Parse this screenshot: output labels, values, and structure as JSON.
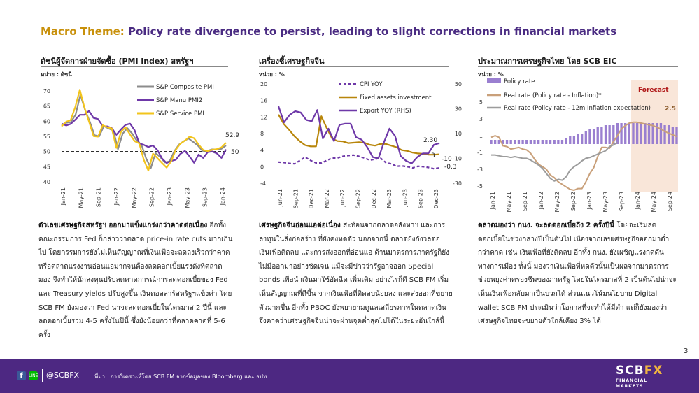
{
  "header": {
    "theme_label": "Macro Theme:",
    "theme_text": " Policy rate divergence to persist, leading to slight corrections in financial markets"
  },
  "page_number": "3",
  "panels": [
    {
      "title": "ดัชนีผู้จัดการฝ่ายจัดซื้อ (PMI index) สหรัฐฯ",
      "unit": "หน่วย : ดัชนี",
      "text_bold": "ตัวเลขเศรษฐกิจสหรัฐฯ ออกมาแข็งแกร่งกว่าคาดต่อเนื่อง",
      "text": " อีกทั้ง คณะกรรมการ Fed ก็กล่าวว่าตลาด price-in rate cuts มากเกินไป โดยกรรมการยังไม่เห็นสัญญาณที่เงินเฟ้อจะลดลงเร็วกว่าคาด หรือตลาดแรงงานอ่อนแอมากจนต้องลดดอกเบี้ยแรงดังที่ตลาดมอง จึงทำให้นักลงทุนปรับลดคาดการณ์การลดดอกเบี้ยของ Fed และ Treasury yields ปรับสูงขึ้น เงินดอลลาร์สหรัฐฯแข็งค่า โดย SCB FM ยังมองว่า Fed น่าจะลดดอกเบี้ยในไตรมาส 2 ปีนี้ และลดดอกเบี้ยรวม 4-5 ครั้งในปีนี้ ซึ่งยังน้อยกว่าที่ตลาดคาดที่ 5-6 ครั้ง"
    },
    {
      "title": "เครื่องชี้เศรษฐกิจจีน",
      "unit": "หน่วย : %",
      "text_bold": "เศรษฐกิจจีนอ่อนแอต่อเนื่อง",
      "text": " สะท้อนจากตลาดอสังหาฯ และการลงทุนในสิ่งก่อสร้าง ที่ยังคงหดตัว นอกจากนี้ ตลาดยังกังวลต่อเงินเฟ้อติดลบ และการส่งออกที่อ่อนแอ ด้านมาตรการภาครัฐก็ยังไม่มีออกมาอย่างชัดเจน แม้จะมีข่าวว่ารัฐอาจออก Special bonds เพื่อนำเงินมาใช้อัดฉีด เพิ่มเติม อย่างไรก็ดี SCB FM เริ่มเห็นสัญญาณที่ดีขึ้น จากเงินเฟ้อที่ติดลบน้อยลง และส่งออกที่ขยายตัวมากขึ้น อีกทั้ง PBOC ยังพยายามดูแลเสถียรภาพในตลาดเงิน จึงคาดว่าเศรษฐกิจจีนน่าจะผ่านจุดต่ำสุดไปได้ในระยะอันใกล้นี้"
    },
    {
      "title": "ประมาณการเศรษฐกิจไทย โดย SCB EIC",
      "unit": "หน่วย : %",
      "text_bold": "ตลาดมองว่า กนง. จะลดดอกเบี้ยถึง 2 ครั้งปีนี้",
      "text": " โดยจะเริ่มลดดอกเบี้ยในช่วงกลางปีเป็นต้นไป เนื่องจากเลขเศรษฐกิจออกมาต่ำกว่าคาด เช่น เงินเฟ้อที่ยังติดลบ อีกทั้ง กนง. ยังเผชิญแรงกดดันทางการเมือง ทั้งนี้ มองว่าเงินเฟ้อที่หดตัวนั้นเป็นผลจากมาตรการช่วยพยุงค่าครองชีพของภาครัฐ โดยในไตรมาสที่ 2 เป็นต้นไปน่าจะเห็นเงินเฟ้อกลับมาเป็นบวกได้ ส่วนแนวโน้มนโยบาย Digital wallet SCB FM ประเมินว่าโอกาสที่จะทำได้มีต่ำ แต่ก็ยังมองว่าเศรษฐกิจไทยจะขยายตัวใกล้เคียง 3% ได้"
    }
  ],
  "footer": {
    "handle": "@SCBFX",
    "source": "ที่มา : การวิเคราะห์โดย SCB FM จากข้อมูลของ Bloomberg และ ธปท.",
    "logo_main": "SCB",
    "logo_fx": "FX",
    "logo_sub1": "FINANCIAL",
    "logo_sub2": "MARKETS"
  },
  "icons": {
    "facebook": "facebook-icon",
    "line": "line-icon"
  },
  "colors": {
    "purple": "#6e38a8",
    "gold": "#f2c41c",
    "gray": "#8c8c8c",
    "brown": "#b8860b",
    "forecast": "#f8e4d8",
    "footer": "#4d2882"
  },
  "chart_data": [
    {
      "type": "line",
      "ylim": [
        40,
        70
      ],
      "yticks": [
        40,
        45,
        50,
        55,
        60,
        65,
        70
      ],
      "xticks": [
        "Jan-21",
        "May-21",
        "Sep-21",
        "Jan-22",
        "May-22",
        "Sep-22",
        "Jan-23",
        "May-23",
        "Sep-23",
        "Jan-24"
      ],
      "reference_line": 50,
      "annotations": [
        "52.9",
        "50"
      ],
      "series": [
        {
          "name": "S&P Composite PMI",
          "color": "#8c8c8c",
          "values": [
            58.7,
            59.5,
            59.7,
            62.2,
            68.7,
            63.7,
            59.9,
            55.4,
            55.0,
            58.4,
            57.6,
            57.0,
            50.8,
            55.9,
            57.7,
            56.0,
            53.6,
            52.3,
            47.7,
            44.6,
            49.5,
            48.2,
            46.4,
            46.8,
            50.1,
            52.3,
            53.4,
            54.3,
            53.2,
            52.0,
            50.2,
            50.2,
            50.7,
            50.7,
            50.9,
            52.0
          ]
        },
        {
          "name": "S&P Manu PMI2",
          "color": "#6e38a8",
          "values": [
            59.2,
            58.6,
            59.1,
            60.5,
            62.1,
            62.1,
            63.4,
            61.1,
            60.7,
            58.4,
            58.3,
            57.7,
            55.5,
            57.3,
            58.8,
            59.2,
            57.0,
            52.7,
            52.2,
            51.5,
            52.0,
            50.4,
            47.7,
            46.2,
            46.9,
            47.3,
            49.2,
            50.2,
            48.4,
            46.3,
            49.0,
            47.9,
            49.8,
            50.0,
            49.4,
            47.9,
            50.7
          ]
        },
        {
          "name": "S&P Service PMI",
          "color": "#f2c41c",
          "values": [
            58.3,
            59.8,
            60.4,
            64.7,
            70.4,
            64.6,
            59.9,
            55.1,
            54.9,
            58.7,
            58.0,
            57.6,
            51.2,
            56.5,
            58.0,
            55.6,
            53.4,
            52.7,
            47.3,
            43.7,
            49.3,
            47.8,
            46.2,
            44.7,
            46.8,
            50.6,
            52.6,
            53.6,
            54.9,
            54.4,
            52.3,
            50.5,
            50.1,
            50.6,
            50.8,
            51.4,
            52.9
          ]
        }
      ]
    },
    {
      "type": "line",
      "ylim": [
        -4,
        20
      ],
      "yticks": [
        -4,
        0,
        4,
        8,
        12,
        16,
        20
      ],
      "y2lim": [
        -30,
        50
      ],
      "y2ticks": [
        -30,
        -10,
        10,
        30,
        50
      ],
      "xticks": [
        "Jun-21",
        "Sep-21",
        "Dec-21",
        "Mar-22",
        "Jun-22",
        "Sep-22",
        "Dec-22",
        "Mar-23",
        "Jun-23",
        "Sep-23",
        "Dec-23"
      ],
      "annotations": [
        "2.30",
        "3",
        "-10",
        "-0.3"
      ],
      "series": [
        {
          "name": "CPI YOY",
          "color": "#6e38a8",
          "dash": true,
          "values": [
            1.1,
            1.0,
            0.8,
            0.7,
            1.5,
            2.3,
            1.5,
            0.9,
            0.9,
            1.5,
            2.1,
            2.1,
            2.5,
            2.7,
            2.8,
            2.5,
            2.1,
            1.6,
            1.8,
            2.1,
            1.0,
            0.7,
            0.1,
            0.2,
            0.0,
            -0.3,
            0.1,
            0.0,
            -0.2,
            -0.5,
            -0.3
          ]
        },
        {
          "name": "Fixed assets investment",
          "color": "#b8860b",
          "values": [
            12.6,
            10.3,
            8.9,
            7.3,
            6.1,
            5.2,
            4.9,
            4.9,
            12.2,
            9.3,
            6.8,
            6.2,
            6.1,
            5.7,
            5.8,
            5.9,
            5.8,
            5.3,
            5.1,
            5.5,
            5.5,
            5.1,
            4.7,
            4.0,
            3.8,
            3.4,
            3.2,
            3.1,
            2.9,
            2.9,
            3.0
          ]
        },
        {
          "name": "Export YOY (RHS)",
          "color": "#6e38a8",
          "values": [
            32,
            19,
            25,
            28,
            27,
            21,
            20,
            29,
            6,
            14,
            4,
            17,
            18,
            18,
            7,
            5,
            -1,
            -9,
            -10,
            3,
            14,
            8,
            -8,
            -12,
            -14,
            -9,
            -6,
            -6,
            1,
            2.3
          ]
        }
      ]
    },
    {
      "type": "bar+line",
      "ylim": [
        -5,
        7
      ],
      "yticks": [
        -5,
        -3,
        -1,
        1,
        3,
        5
      ],
      "xticks": [
        "Jan-21",
        "May-21",
        "Sep-21",
        "Jan-22",
        "May-22",
        "Sep-22",
        "Jan-23",
        "May-23",
        "Sep-23",
        "Jan-24",
        "May-24",
        "Sep-24"
      ],
      "forecast_label": "Forecast",
      "annotations": [
        "2.5"
      ],
      "series": [
        {
          "name": "Policy rate",
          "type": "bar",
          "color": "#9a7fd0",
          "values": [
            0.5,
            0.5,
            0.5,
            0.5,
            0.5,
            0.5,
            0.5,
            0.5,
            0.5,
            0.5,
            0.5,
            0.5,
            0.5,
            0.5,
            0.5,
            0.5,
            0.5,
            0.5,
            0.5,
            0.75,
            1.0,
            1.0,
            1.25,
            1.25,
            1.5,
            1.75,
            1.75,
            2.0,
            2.0,
            2.25,
            2.25,
            2.25,
            2.5,
            2.5,
            2.5,
            2.5,
            2.5,
            2.5,
            2.5,
            2.5,
            2.5,
            2.5,
            2.5,
            2.5,
            2.25,
            2.25,
            2.0,
            2.0
          ]
        },
        {
          "name": "Real rate (Policy rate - Inflation)*",
          "type": "line",
          "color": "#c9a07a",
          "values": [
            0.8,
            1.0,
            0.8,
            -0.2,
            -0.3,
            -0.6,
            -0.5,
            -0.4,
            -0.6,
            -0.7,
            -1.1,
            -1.8,
            -2.4,
            -2.7,
            -3.0,
            -3.7,
            -4.0,
            -4.5,
            -4.8,
            -5.1,
            -5.4,
            -5.5,
            -5.3,
            -5.3,
            -4.5,
            -3.5,
            -2.8,
            -1.5,
            -0.4,
            -0.4,
            -0.5,
            0.3,
            1.0,
            1.8,
            2.2,
            2.5,
            2.6,
            2.6,
            2.5,
            2.4,
            2.3,
            2.2,
            2.0,
            1.8,
            1.5,
            1.3,
            1.1,
            0.9
          ]
        },
        {
          "name": "Real rate (Policy rate - 12m Inflation expectation)",
          "type": "line",
          "color": "#9c9c9c",
          "values": [
            -1.3,
            -1.3,
            -1.4,
            -1.5,
            -1.5,
            -1.6,
            -1.5,
            -1.6,
            -1.7,
            -1.7,
            -1.9,
            -2.2,
            -2.5,
            -2.9,
            -3.5,
            -4.1,
            -4.4,
            -4.2,
            -4.3,
            -3.9,
            -3.1,
            -2.7,
            -2.4,
            -2.0,
            -1.7,
            -1.6,
            -1.4,
            -1.2,
            -1.0,
            -0.8,
            -0.3,
            -0.1,
            0.2
          ]
        }
      ]
    }
  ]
}
